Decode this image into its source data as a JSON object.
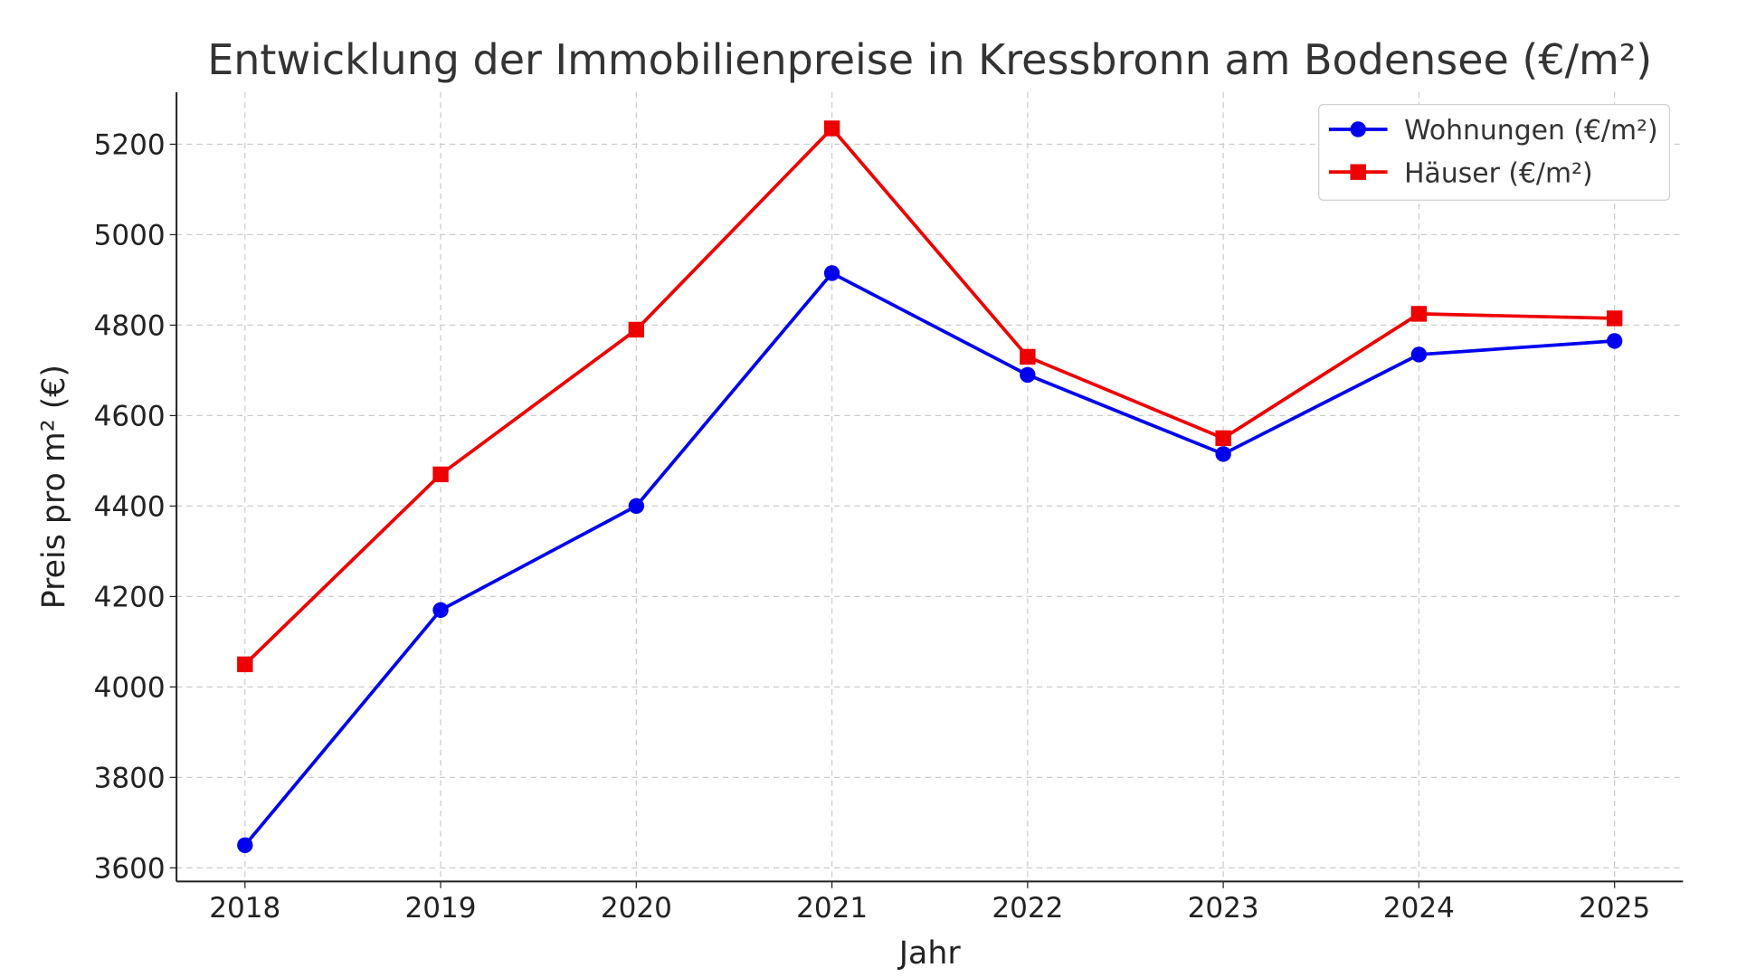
{
  "chart_data": {
    "type": "line",
    "title": "Entwicklung der Immobilienpreise in Kressbronn am Bodensee (€/m²)",
    "xlabel": "Jahr",
    "ylabel": "Preis pro m² (€)",
    "x": [
      2018,
      2019,
      2020,
      2021,
      2022,
      2023,
      2024,
      2025
    ],
    "x_tick_labels": [
      "2018",
      "2019",
      "2020",
      "2021",
      "2022",
      "2023",
      "2024",
      "2025"
    ],
    "y_ticks": [
      3600,
      3800,
      4000,
      4200,
      4400,
      4600,
      4800,
      5000,
      5200
    ],
    "y_tick_labels": [
      "3600",
      "3800",
      "4000",
      "4200",
      "4400",
      "4600",
      "4800",
      "5000",
      "5200"
    ],
    "ylim": [
      3570,
      5315
    ],
    "xlim": [
      2017.65,
      2025.35
    ],
    "grid": true,
    "legend_position": "top-right",
    "series": [
      {
        "name": "Wohnungen (€/m²)",
        "color": "#0000ee",
        "marker": "circle",
        "values": [
          3650,
          4170,
          4400,
          4915,
          4690,
          4515,
          4735,
          4765
        ]
      },
      {
        "name": "Häuser (€/m²)",
        "color": "#ee0000",
        "marker": "square",
        "values": [
          4050,
          4470,
          4790,
          5235,
          4730,
          4550,
          4825,
          4815
        ]
      }
    ]
  }
}
